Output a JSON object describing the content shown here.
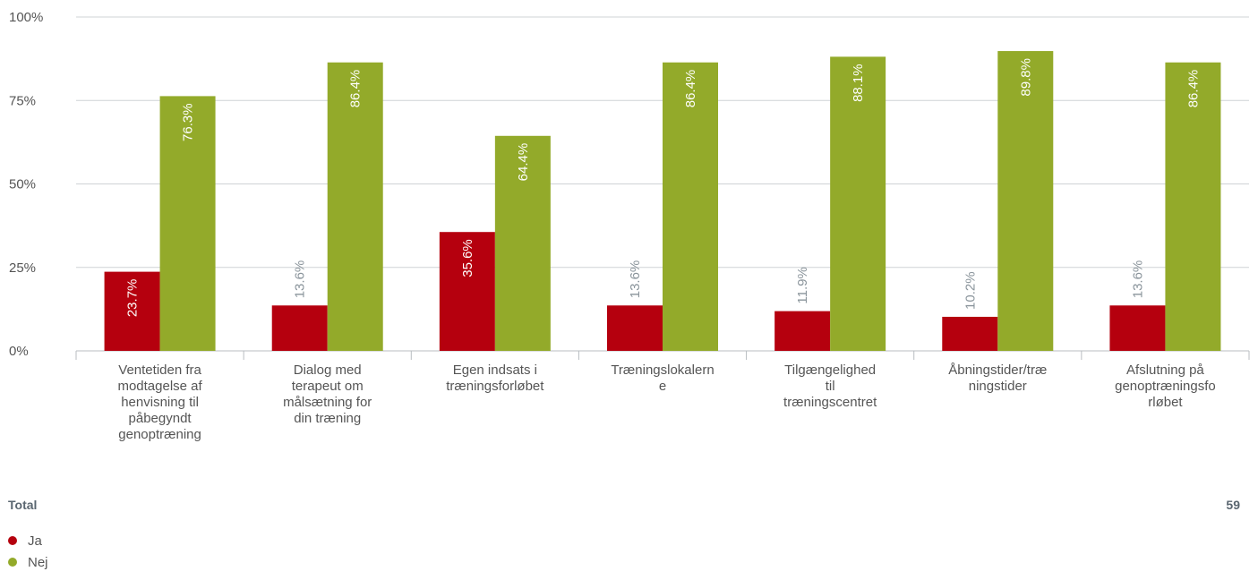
{
  "chart_data": {
    "type": "bar",
    "categories": [
      "Ventetiden fra modtagelse af henvisning til påbegyndt genoptræning",
      "Dialog med terapeut om målsætning for din træning",
      "Egen indsats i træningsforløbet",
      "Træningslokalerne",
      "Tilgængelighed til træningscentret",
      "Åbningstider/træningstider",
      "Afslutning på genoptræningsforløbet"
    ],
    "category_lines": [
      [
        "Ventetiden fra",
        "modtagelse af",
        "henvisning til",
        "påbegyndt",
        "genoptræning"
      ],
      [
        "Dialog med",
        "terapeut om",
        "målsætning for",
        "din træning"
      ],
      [
        "Egen indsats i",
        "træningsforløbet"
      ],
      [
        "Træningslokalern",
        "e"
      ],
      [
        "Tilgængelighed",
        "til",
        "træningscentret"
      ],
      [
        "Åbningstider/træ",
        "ningstider"
      ],
      [
        "Afslutning på",
        "genoptræningsfo",
        "rløbet"
      ]
    ],
    "series": [
      {
        "name": "Ja",
        "color": "#b5000e",
        "values": [
          23.7,
          13.6,
          35.6,
          13.6,
          11.9,
          10.2,
          13.6
        ]
      },
      {
        "name": "Nej",
        "color": "#93aa2a",
        "values": [
          76.3,
          86.4,
          64.4,
          86.4,
          88.1,
          89.8,
          86.4
        ]
      }
    ],
    "value_labels": [
      [
        "23.7%",
        "13.6%",
        "35.6%",
        "13.6%",
        "11.9%",
        "10.2%",
        "13.6%"
      ],
      [
        "76.3%",
        "86.4%",
        "64.4%",
        "86.4%",
        "88.1%",
        "89.8%",
        "86.4%"
      ]
    ],
    "yticks": [
      0,
      25,
      50,
      75,
      100
    ],
    "ytick_labels": [
      "0%",
      "25%",
      "50%",
      "75%",
      "100%"
    ],
    "ylim": [
      0,
      100
    ],
    "grid": true,
    "legend_position": "bottom-left"
  },
  "footer": {
    "total_label": "Total",
    "n": "59"
  },
  "legend": [
    {
      "label": "Ja",
      "color": "#b5000e"
    },
    {
      "label": "Nej",
      "color": "#93aa2a"
    }
  ]
}
